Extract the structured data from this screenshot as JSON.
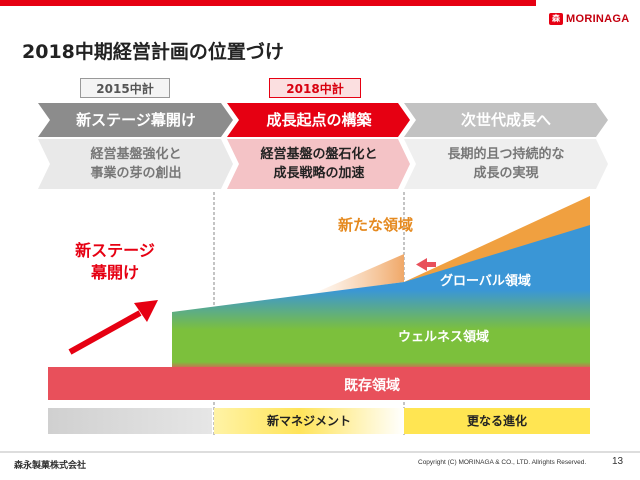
{
  "header": {
    "title": "2018中期経営計画の位置づけ",
    "brand_name": "MORINAGA",
    "brand_color": "#e60012"
  },
  "plan_tags": {
    "previous": "2015中計",
    "current": "2018中計"
  },
  "phases": [
    {
      "title": "新ステージ幕開け",
      "desc_line1": "経営基盤強化と",
      "desc_line2": "事業の芽の創出"
    },
    {
      "title": "成長起点の構築",
      "desc_line1": "経営基盤の盤石化と",
      "desc_line2": "成長戦略の加速"
    },
    {
      "title": "次世代成長へ",
      "desc_line1": "長期的且つ持続的な",
      "desc_line2": "成長の実現"
    }
  ],
  "diagram": {
    "left_label_line1": "新ステージ",
    "left_label_line2": "幕開け",
    "new_domain": "新たな領域",
    "global_domain": "グローバル領域",
    "wellness_domain": "ウェルネス領域",
    "existing_domain": "既存領域",
    "colors": {
      "existing": "#e8505b",
      "wellness": "#7cc03c",
      "global": "#3a96d6",
      "new": "#f0a040",
      "accent_red": "#e60012"
    }
  },
  "bottom_bands": {
    "management": "新マネジメント",
    "evolution": "更なる進化"
  },
  "footer": {
    "company": "森永製菓株式会社",
    "copyright": "Copyright (C) MORINAGA & CO., LTD. Allrights Reserved.",
    "page_number": "13"
  }
}
